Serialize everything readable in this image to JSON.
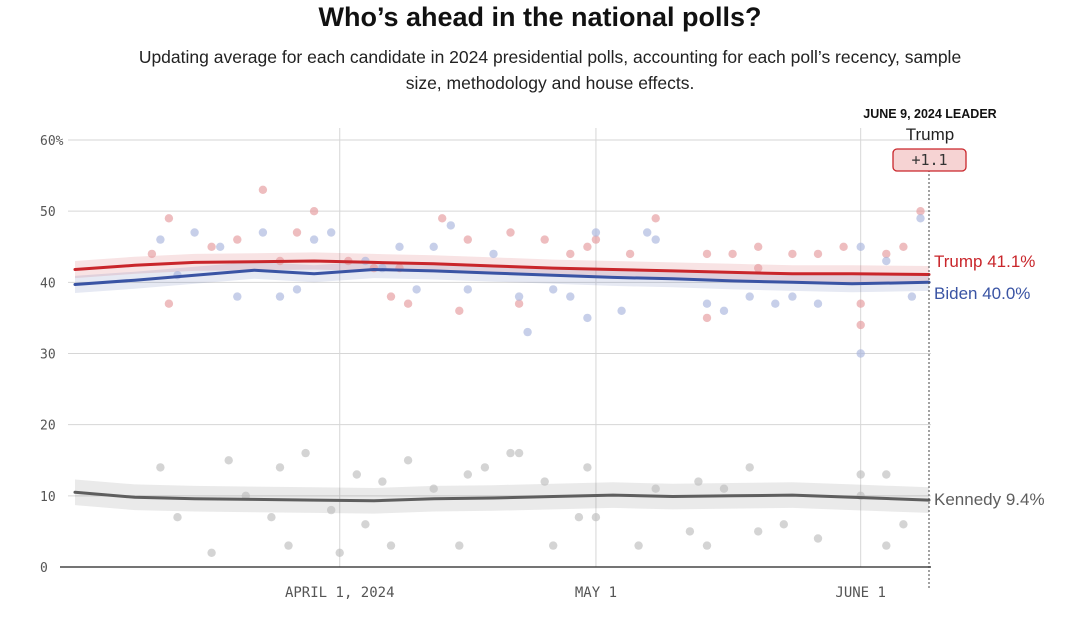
{
  "title": "Who’s ahead in the national polls?",
  "subtitle": "Updating average for each candidate in 2024 presidential polls, accounting for each poll’s recency, sample size, methodology and house effects.",
  "leader_box": {
    "heading": "JUNE 9, 2024 LEADER",
    "name": "Trump",
    "margin": "+1.1"
  },
  "chart_data": {
    "type": "line",
    "title": "Who’s ahead in the national polls?",
    "subtitle": "Updating average for each candidate in 2024 presidential polls, accounting for each poll’s recency, sample size, methodology and house effects.",
    "xlabel": "",
    "ylabel": "",
    "x_domain": [
      "2024-03-01",
      "2024-06-09"
    ],
    "ylim": [
      0,
      60
    ],
    "y_ticks": [
      0,
      10,
      20,
      30,
      40,
      50,
      60
    ],
    "y_tick_labels": [
      "0",
      "10",
      "20",
      "30",
      "40",
      "50",
      "60%"
    ],
    "x_ticks": [
      {
        "date": "2024-04-01",
        "label": "APRIL 1, 2024"
      },
      {
        "date": "2024-05-01",
        "label": "MAY 1"
      },
      {
        "date": "2024-06-01",
        "label": "JUNE 1"
      }
    ],
    "grid": true,
    "colors": {
      "trump": "#c9262b",
      "biden": "#3a54a4",
      "kennedy": "#5e5e5e"
    },
    "series": [
      {
        "name": "Trump",
        "end_label": "Trump 41.1%",
        "color": "#c9262b",
        "x": [
          "2024-03-01",
          "2024-03-08",
          "2024-03-15",
          "2024-03-22",
          "2024-03-29",
          "2024-04-05",
          "2024-04-12",
          "2024-04-19",
          "2024-04-26",
          "2024-05-03",
          "2024-05-10",
          "2024-05-17",
          "2024-05-24",
          "2024-05-31",
          "2024-06-09"
        ],
        "values": [
          41.8,
          42.4,
          42.8,
          42.9,
          43.0,
          42.8,
          42.6,
          42.3,
          42.0,
          41.8,
          41.6,
          41.4,
          41.2,
          41.2,
          41.1
        ],
        "band": 1.2
      },
      {
        "name": "Biden",
        "end_label": "Biden 40.0%",
        "color": "#3a54a4",
        "x": [
          "2024-03-01",
          "2024-03-08",
          "2024-03-15",
          "2024-03-22",
          "2024-03-29",
          "2024-04-05",
          "2024-04-12",
          "2024-04-19",
          "2024-04-26",
          "2024-05-03",
          "2024-05-10",
          "2024-05-17",
          "2024-05-24",
          "2024-05-31",
          "2024-06-09"
        ],
        "values": [
          39.7,
          40.3,
          41.0,
          41.7,
          41.2,
          41.8,
          41.6,
          41.3,
          41.0,
          40.7,
          40.5,
          40.2,
          40.0,
          39.8,
          40.0
        ],
        "band": 1.2
      },
      {
        "name": "Kennedy",
        "end_label": "Kennedy 9.4%",
        "color": "#5e5e5e",
        "x": [
          "2024-03-01",
          "2024-03-08",
          "2024-03-15",
          "2024-03-22",
          "2024-03-29",
          "2024-04-05",
          "2024-04-12",
          "2024-04-19",
          "2024-04-26",
          "2024-05-03",
          "2024-05-10",
          "2024-05-17",
          "2024-05-24",
          "2024-05-31",
          "2024-06-09"
        ],
        "values": [
          10.5,
          9.8,
          9.6,
          9.5,
          9.4,
          9.3,
          9.6,
          9.7,
          9.9,
          10.1,
          9.9,
          10.0,
          10.1,
          9.8,
          9.4
        ],
        "band": 1.8
      }
    ],
    "polls": {
      "trump": [
        [
          "2024-03-10",
          44
        ],
        [
          "2024-03-12",
          49
        ],
        [
          "2024-03-12",
          37
        ],
        [
          "2024-03-17",
          45
        ],
        [
          "2024-03-20",
          46
        ],
        [
          "2024-03-23",
          53
        ],
        [
          "2024-03-25",
          43
        ],
        [
          "2024-03-27",
          47
        ],
        [
          "2024-03-29",
          50
        ],
        [
          "2024-04-02",
          43
        ],
        [
          "2024-04-05",
          42
        ],
        [
          "2024-04-07",
          38
        ],
        [
          "2024-04-08",
          42
        ],
        [
          "2024-04-09",
          37
        ],
        [
          "2024-04-13",
          49
        ],
        [
          "2024-04-15",
          36
        ],
        [
          "2024-04-16",
          46
        ],
        [
          "2024-04-21",
          47
        ],
        [
          "2024-04-22",
          37
        ],
        [
          "2024-04-25",
          46
        ],
        [
          "2024-04-28",
          44
        ],
        [
          "2024-04-30",
          45
        ],
        [
          "2024-05-01",
          46
        ],
        [
          "2024-05-05",
          44
        ],
        [
          "2024-05-08",
          49
        ],
        [
          "2024-05-14",
          44
        ],
        [
          "2024-05-14",
          35
        ],
        [
          "2024-05-17",
          44
        ],
        [
          "2024-05-20",
          42
        ],
        [
          "2024-05-20",
          45
        ],
        [
          "2024-05-24",
          44
        ],
        [
          "2024-05-27",
          44
        ],
        [
          "2024-05-30",
          45
        ],
        [
          "2024-06-01",
          34
        ],
        [
          "2024-06-01",
          37
        ],
        [
          "2024-06-04",
          44
        ],
        [
          "2024-06-06",
          45
        ],
        [
          "2024-06-08",
          50
        ]
      ],
      "biden": [
        [
          "2024-03-11",
          46
        ],
        [
          "2024-03-13",
          41
        ],
        [
          "2024-03-15",
          47
        ],
        [
          "2024-03-18",
          45
        ],
        [
          "2024-03-20",
          38
        ],
        [
          "2024-03-23",
          47
        ],
        [
          "2024-03-25",
          38
        ],
        [
          "2024-03-27",
          39
        ],
        [
          "2024-03-29",
          46
        ],
        [
          "2024-03-31",
          47
        ],
        [
          "2024-04-04",
          43
        ],
        [
          "2024-04-06",
          42
        ],
        [
          "2024-04-08",
          45
        ],
        [
          "2024-04-10",
          39
        ],
        [
          "2024-04-12",
          45
        ],
        [
          "2024-04-14",
          48
        ],
        [
          "2024-04-16",
          39
        ],
        [
          "2024-04-19",
          44
        ],
        [
          "2024-04-22",
          38
        ],
        [
          "2024-04-23",
          33
        ],
        [
          "2024-04-26",
          39
        ],
        [
          "2024-04-28",
          38
        ],
        [
          "2024-04-30",
          35
        ],
        [
          "2024-05-01",
          47
        ],
        [
          "2024-05-04",
          36
        ],
        [
          "2024-05-07",
          47
        ],
        [
          "2024-05-08",
          46
        ],
        [
          "2024-05-14",
          37
        ],
        [
          "2024-05-16",
          36
        ],
        [
          "2024-05-19",
          38
        ],
        [
          "2024-05-22",
          37
        ],
        [
          "2024-05-24",
          38
        ],
        [
          "2024-05-27",
          37
        ],
        [
          "2024-06-01",
          30
        ],
        [
          "2024-06-01",
          45
        ],
        [
          "2024-06-04",
          43
        ],
        [
          "2024-06-07",
          38
        ],
        [
          "2024-06-08",
          49
        ]
      ],
      "kennedy": [
        [
          "2024-03-11",
          14
        ],
        [
          "2024-03-13",
          7
        ],
        [
          "2024-03-17",
          2
        ],
        [
          "2024-03-19",
          15
        ],
        [
          "2024-03-21",
          10
        ],
        [
          "2024-03-24",
          7
        ],
        [
          "2024-03-25",
          14
        ],
        [
          "2024-03-26",
          3
        ],
        [
          "2024-03-28",
          16
        ],
        [
          "2024-03-31",
          8
        ],
        [
          "2024-04-01",
          2
        ],
        [
          "2024-04-03",
          13
        ],
        [
          "2024-04-04",
          6
        ],
        [
          "2024-04-06",
          12
        ],
        [
          "2024-04-07",
          3
        ],
        [
          "2024-04-09",
          15
        ],
        [
          "2024-04-12",
          11
        ],
        [
          "2024-04-15",
          3
        ],
        [
          "2024-04-16",
          13
        ],
        [
          "2024-04-18",
          14
        ],
        [
          "2024-04-21",
          16
        ],
        [
          "2024-04-22",
          16
        ],
        [
          "2024-04-25",
          12
        ],
        [
          "2024-04-26",
          3
        ],
        [
          "2024-04-29",
          7
        ],
        [
          "2024-04-30",
          14
        ],
        [
          "2024-05-01",
          7
        ],
        [
          "2024-05-06",
          3
        ],
        [
          "2024-05-08",
          11
        ],
        [
          "2024-05-12",
          5
        ],
        [
          "2024-05-13",
          12
        ],
        [
          "2024-05-14",
          3
        ],
        [
          "2024-05-16",
          11
        ],
        [
          "2024-05-19",
          14
        ],
        [
          "2024-05-20",
          5
        ],
        [
          "2024-05-23",
          6
        ],
        [
          "2024-05-27",
          4
        ],
        [
          "2024-06-01",
          13
        ],
        [
          "2024-06-01",
          10
        ],
        [
          "2024-06-04",
          3
        ],
        [
          "2024-06-04",
          13
        ],
        [
          "2024-06-06",
          6
        ]
      ]
    }
  }
}
